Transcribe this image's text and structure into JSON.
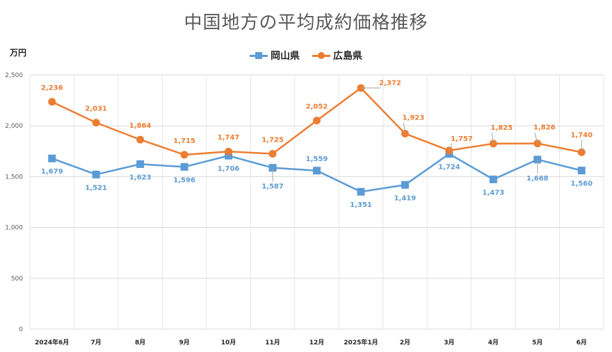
{
  "chart_data": {
    "type": "line",
    "title": "中国地方の平均成約価格推移",
    "ylabel": "万円",
    "xlabel": "",
    "ylim": [
      0,
      2500
    ],
    "yticks": [
      0,
      500,
      1000,
      1500,
      2000,
      2500
    ],
    "ytick_labels": [
      "0",
      "500",
      "1,000",
      "1,500",
      "2,000",
      "2,500"
    ],
    "categories": [
      "2024年6月",
      "7月",
      "8月",
      "9月",
      "10月",
      "11月",
      "12月",
      "2025年1月",
      "2月",
      "3月",
      "4月",
      "5月",
      "6月"
    ],
    "grid": "vertical-and-horizontal",
    "legend_position": "top-center",
    "series": [
      {
        "name": "岡山県",
        "color": "#5b9bd5",
        "marker": "square",
        "values": [
          1679,
          1521,
          1623,
          1596,
          1706,
          1587,
          1559,
          1351,
          1419,
          1724,
          1473,
          1668,
          1560
        ],
        "labels": [
          "1,679",
          "1,521",
          "1,623",
          "1,596",
          "1,706",
          "1,587",
          "1,559",
          "1,351",
          "1,419",
          "1,724",
          "1,473",
          "1,668",
          "1,560"
        ]
      },
      {
        "name": "広島県",
        "color": "#ed7d31",
        "marker": "circle",
        "values": [
          2236,
          2031,
          1864,
          1715,
          1747,
          1725,
          2052,
          2372,
          1923,
          1757,
          1825,
          1826,
          1740
        ],
        "labels": [
          "2,236",
          "2,031",
          "1,864",
          "1,715",
          "1,747",
          "1,725",
          "2,052",
          "2,372",
          "1,923",
          "1,757",
          "1,825",
          "1,826",
          "1,740"
        ]
      }
    ]
  }
}
